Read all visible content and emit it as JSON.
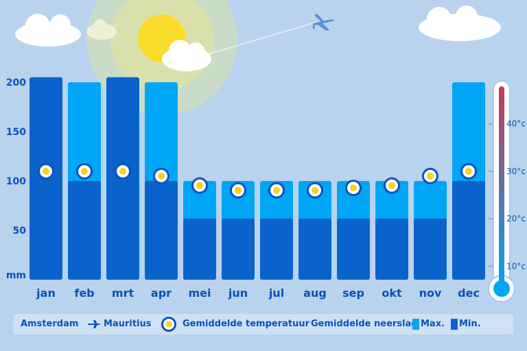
{
  "chart_data": {
    "type": "bar",
    "title": "",
    "categories": [
      "jan",
      "feb",
      "mrt",
      "apr",
      "mei",
      "jun",
      "jul",
      "aug",
      "sep",
      "okt",
      "nov",
      "dec"
    ],
    "series": [
      {
        "name": "Max.",
        "values": [
          205,
          200,
          205,
          200,
          100,
          100,
          100,
          100,
          100,
          100,
          100,
          200
        ]
      },
      {
        "name": "Min.",
        "values": [
          205,
          100,
          205,
          100,
          62,
          62,
          62,
          62,
          62,
          62,
          62,
          100
        ]
      }
    ],
    "temperature": {
      "name": "Gemiddelde temperatuur",
      "values": [
        30,
        30,
        30,
        29,
        27,
        26,
        26,
        26,
        26.5,
        27,
        29,
        30
      ],
      "ylim": [
        0,
        45
      ],
      "ticks": [
        "10°c",
        "20°c",
        "30°c",
        "40°c"
      ]
    },
    "ylabel": "mm",
    "ylim": [
      0,
      210
    ],
    "yticks": [
      50,
      100,
      150,
      200
    ],
    "colors": {
      "max": "#00a6f5",
      "min": "#0a63cc",
      "text": "#0a52b8",
      "background": "#b9d3ee"
    }
  },
  "legend": {
    "route_from": "Amsterdam",
    "route_to": "Mauritius",
    "temp_label": "Gemiddelde temperatuur",
    "rain_label": "Gemiddelde neerslag",
    "max_label": "Max.",
    "min_label": "Min."
  }
}
